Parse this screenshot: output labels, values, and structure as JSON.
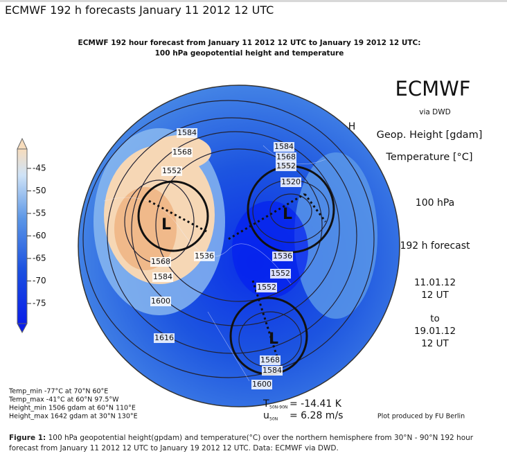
{
  "header": {
    "title": "ECMWF 192 h forecasts January 11 2012 12 UTC"
  },
  "map": {
    "title_lines": [
      "ECMWF 192 hour forecast from January 11 2012 12 UTC to January 19 2012 12 UTC:",
      "100 hPa geopotential height and temperature"
    ],
    "brand": "ECMWF",
    "source": "via DWD",
    "variables": [
      "Geop. Height [gdam]",
      "Temperature [°C]"
    ],
    "level": "100 hPa",
    "forecast": "192 h forecast",
    "valid": [
      "11.01.12",
      "12 UT",
      "to",
      "19.01.12",
      "12 UT"
    ],
    "colorbar": {
      "ticks": [
        -45,
        -50,
        -55,
        -60,
        -65,
        -70,
        -75
      ]
    },
    "contour_labels": [
      "1584",
      "1568",
      "1552",
      "1584",
      "1568",
      "1552",
      "1520",
      "1536",
      "1536",
      "1552",
      "1552",
      "1568",
      "1584",
      "1600",
      "1616",
      "1568",
      "1584",
      "1600"
    ],
    "lows": [
      "L",
      "L",
      "L"
    ],
    "highs": [
      "H"
    ],
    "stats": [
      "Temp_min -77°C at 70°N 60°E",
      "Temp_max -41°C at 60°N 97.5°W",
      "Height_min 1506 gdam at 60°N 110°E",
      "Height_max 1642 gdam at 30°N 130°E"
    ],
    "means": [
      {
        "symbol": "T",
        "subscript": "50N-90N",
        "value": "= -14.41 K"
      },
      {
        "symbol": "u",
        "subscript": "50N",
        "value": "= 6.28 m/s"
      }
    ],
    "credit": "Plot produced by FU Berlin"
  },
  "caption": {
    "label": "Figure 1:",
    "text": "100 hPa geopotential height(gpdam) and temperature(°C) over the northern hemisphere from 30°N - 90°N 192 hour forecast from January 11 2012 12 UTC to January 19 2012 12 UTC. Data: ECMWF via DWD."
  }
}
